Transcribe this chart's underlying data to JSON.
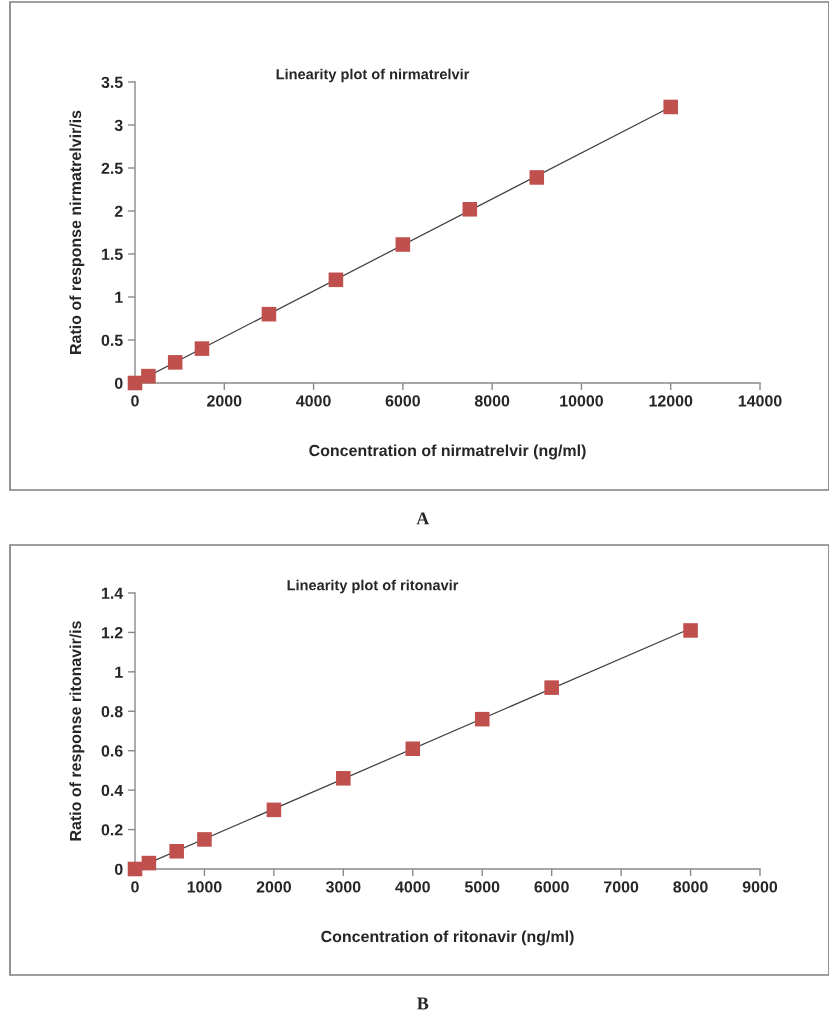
{
  "chart_data": [
    {
      "type": "scatter",
      "title": "Linearity plot of nirmatrelvir",
      "xlabel": "Concentration of nirmatrelvir (ng/ml)",
      "ylabel": "Ratio of response nirmatrelvir/is",
      "marker": "square",
      "grid": false,
      "legend": false,
      "series": [
        {
          "color": "#c0504d",
          "x": [
            0,
            300,
            900,
            1500,
            3000,
            4500,
            6000,
            7500,
            9000,
            12000
          ],
          "values": [
            0,
            0.08,
            0.24,
            0.4,
            0.8,
            1.2,
            1.61,
            2.02,
            2.39,
            3.21
          ]
        },
        {
          "type": "line",
          "color": "#404040",
          "marker": "none",
          "line_style": "solid",
          "x": [
            0,
            12000
          ],
          "values": [
            0.0,
            3.21
          ]
        }
      ],
      "xlim": [
        0,
        14000
      ],
      "xticks": [
        0,
        2000,
        4000,
        6000,
        8000,
        10000,
        12000,
        14000
      ],
      "ylim": [
        0,
        3.5
      ],
      "yticks": [
        0,
        0.5,
        1,
        1.5,
        2,
        2.5,
        3,
        3.5
      ],
      "annotations": [
        "A"
      ]
    },
    {
      "type": "scatter",
      "title": "Linearity plot of ritonavir",
      "xlabel": "Concentration of ritonavir (ng/ml)",
      "ylabel": "Ratio of response ritonavir/is",
      "marker": "square",
      "grid": false,
      "legend": false,
      "series": [
        {
          "color": "#c0504d",
          "x": [
            0,
            200,
            600,
            1000,
            2000,
            3000,
            4000,
            5000,
            6000,
            8000
          ],
          "values": [
            0,
            0.03,
            0.09,
            0.15,
            0.3,
            0.46,
            0.61,
            0.76,
            0.92,
            1.21
          ]
        },
        {
          "type": "line",
          "color": "#404040",
          "marker": "none",
          "line_style": "solid",
          "x": [
            0,
            8000
          ],
          "values": [
            0.0,
            1.22
          ]
        }
      ],
      "xlim": [
        0,
        9000
      ],
      "xticks": [
        0,
        1000,
        2000,
        3000,
        4000,
        5000,
        6000,
        7000,
        8000,
        9000
      ],
      "ylim": [
        0,
        1.4
      ],
      "yticks": [
        0,
        0.2,
        0.4,
        0.6,
        0.8,
        1,
        1.2,
        1.4
      ],
      "annotations": [
        "B"
      ]
    }
  ]
}
